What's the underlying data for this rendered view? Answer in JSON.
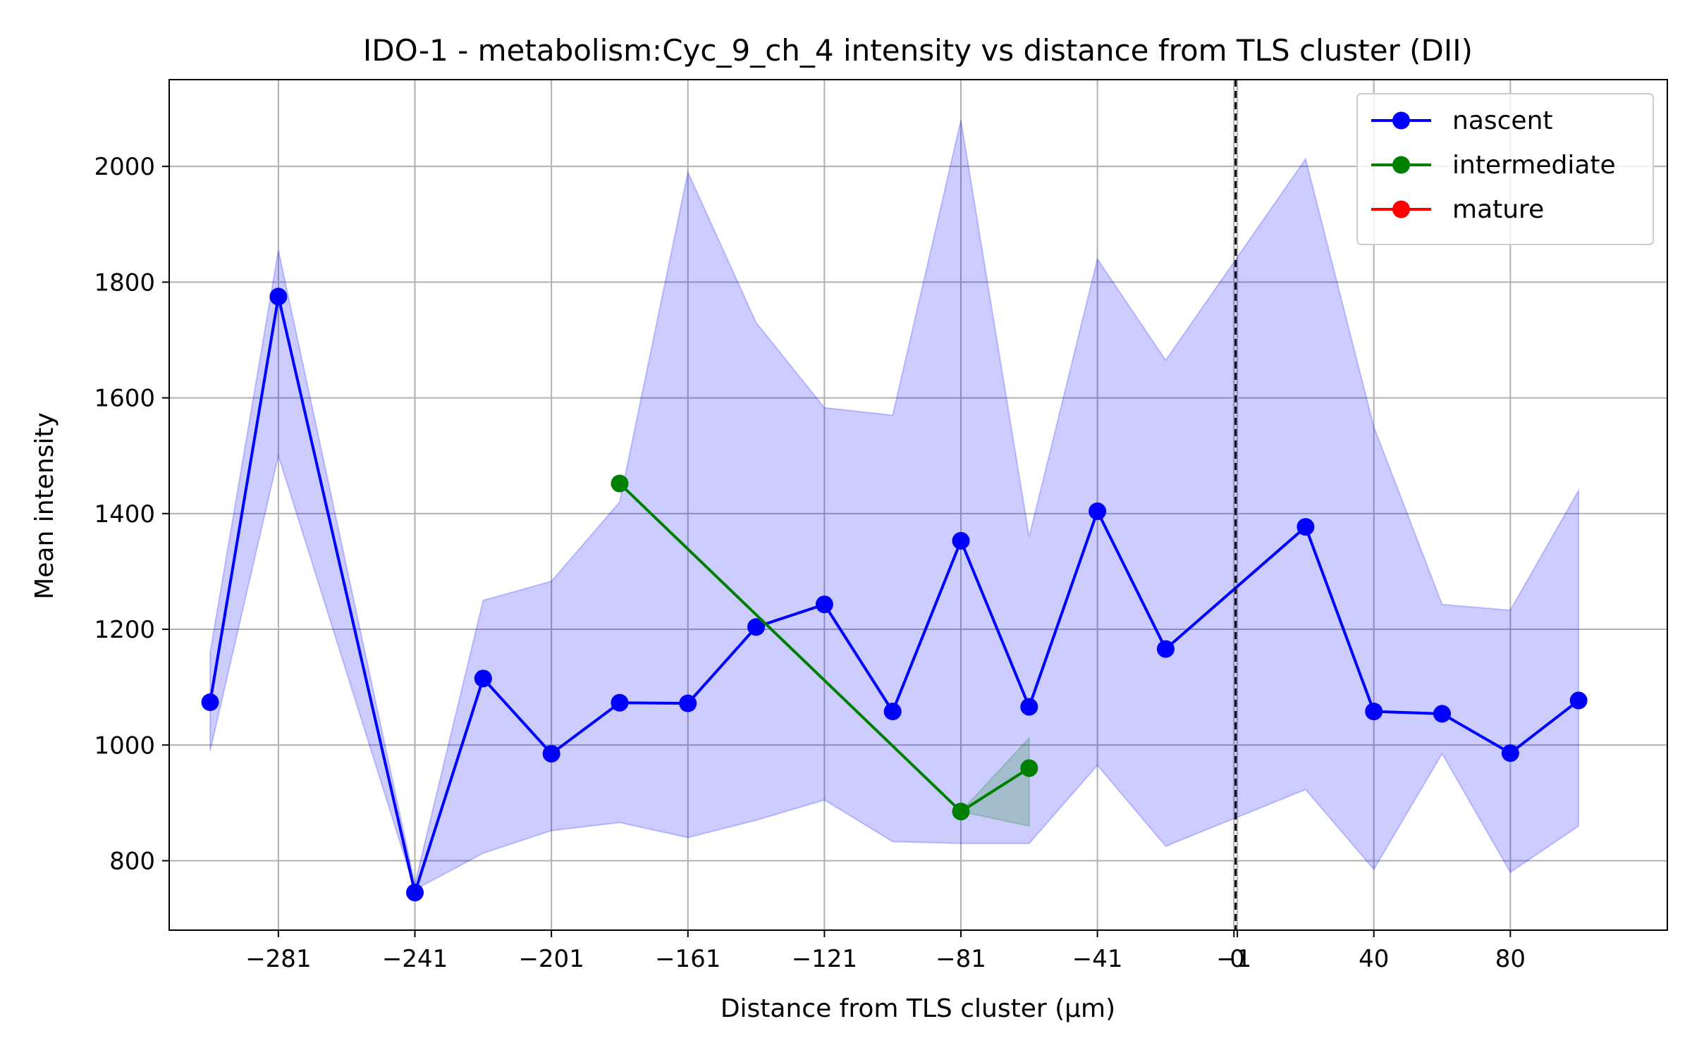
{
  "chart_data": {
    "type": "line",
    "title": "IDO-1 - metabolism:Cyc_9_ch_4 intensity vs distance from TLS cluster (DII)",
    "xlabel": "Distance from TLS cluster (μm)",
    "ylabel": "Mean intensity",
    "xlim": [
      -313,
      126
    ],
    "ylim": [
      680,
      2150
    ],
    "x_ticks": [
      {
        "value": -281,
        "label": "−281"
      },
      {
        "value": -241,
        "label": "−241"
      },
      {
        "value": -201,
        "label": "−201"
      },
      {
        "value": -161,
        "label": "−161"
      },
      {
        "value": -121,
        "label": "−121"
      },
      {
        "value": -81,
        "label": "−81"
      },
      {
        "value": -41,
        "label": "−41"
      },
      {
        "value": -1,
        "label": "−1"
      },
      {
        "value": 0,
        "label": "0"
      },
      {
        "value": 40,
        "label": "40"
      },
      {
        "value": 80,
        "label": "80"
      }
    ],
    "y_ticks": [
      {
        "value": 800,
        "label": "800"
      },
      {
        "value": 1000,
        "label": "1000"
      },
      {
        "value": 1200,
        "label": "1200"
      },
      {
        "value": 1400,
        "label": "1400"
      },
      {
        "value": 1600,
        "label": "1600"
      },
      {
        "value": 1800,
        "label": "1800"
      },
      {
        "value": 2000,
        "label": "2000"
      }
    ],
    "grid": true,
    "vline_x": -0.5,
    "legend_position": "top-right",
    "series": [
      {
        "name": "nascent",
        "color": "#0000ff",
        "x": [
          -301,
          -281,
          -241,
          -221,
          -201,
          -181,
          -161,
          -141,
          -121,
          -101,
          -81,
          -61,
          -41,
          -21,
          20,
          40,
          60,
          80,
          100
        ],
        "y": [
          1074,
          1775,
          745,
          1115,
          985,
          1073,
          1072,
          1204,
          1243,
          1058,
          1353,
          1066,
          1404,
          1166,
          1377,
          1058,
          1054,
          986,
          1077
        ],
        "band_upper": [
          1160,
          1855,
          760,
          1250,
          1283,
          1420,
          1990,
          1730,
          1583,
          1570,
          2080,
          1360,
          1840,
          1665,
          2013,
          1550,
          1243,
          1233,
          1440
        ],
        "band_lower": [
          990,
          1500,
          750,
          813,
          852,
          866,
          840,
          870,
          905,
          833,
          830,
          830,
          965,
          825,
          923,
          785,
          985,
          780,
          860
        ]
      },
      {
        "name": "intermediate",
        "color": "#008000",
        "x": [
          -181,
          -81,
          -61
        ],
        "y": [
          1452,
          885,
          960
        ],
        "band_upper": [
          1452,
          885,
          1012
        ],
        "band_lower": [
          1452,
          885,
          860
        ]
      },
      {
        "name": "mature",
        "color": "#ff0000",
        "x": [],
        "y": []
      }
    ]
  }
}
